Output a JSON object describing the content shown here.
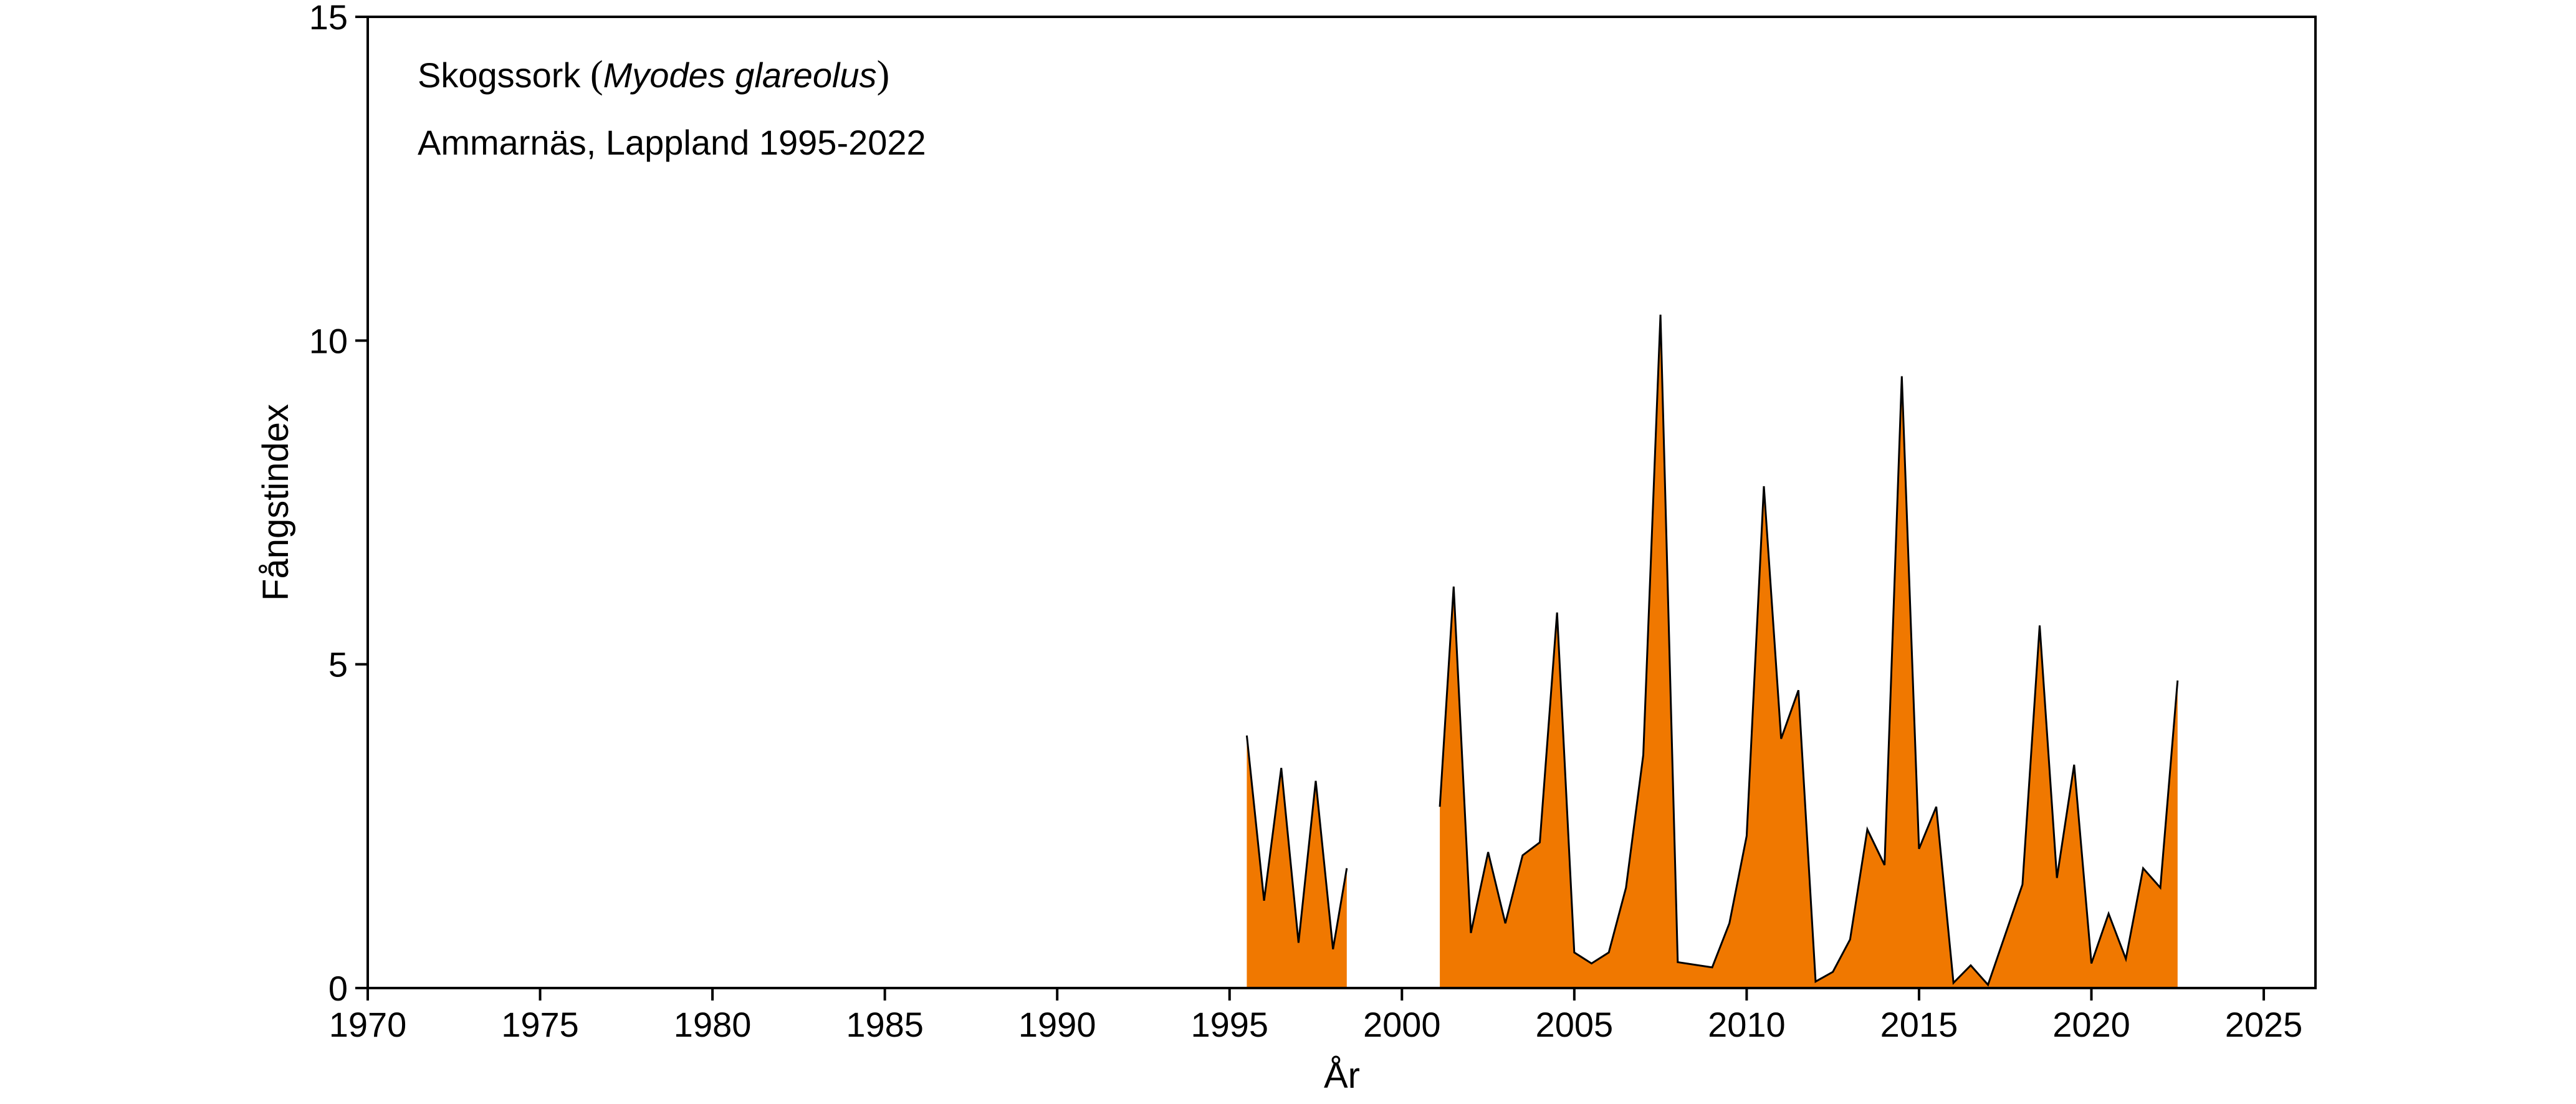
{
  "chart_data": {
    "type": "area",
    "title": "",
    "annotations": {
      "line1_prefix": "Skogssork ",
      "line1_paren_open": "(",
      "line1_species": "Myodes glareolus",
      "line1_paren_close": ")",
      "line2": "Ammarnäs, Lappland 1995-2022"
    },
    "xlabel": "År",
    "ylabel": "Fångstindex",
    "xlim": [
      1970,
      2026.5
    ],
    "ylim": [
      0,
      15
    ],
    "x_ticks": [
      1970,
      1975,
      1980,
      1985,
      1990,
      1995,
      2000,
      2005,
      2010,
      2015,
      2020,
      2025
    ],
    "x_tick_labels": [
      "1970",
      "1975",
      "1980",
      "1985",
      "1990",
      "1995",
      "2000",
      "2005",
      "2010",
      "2015",
      "2020",
      "2025"
    ],
    "y_ticks": [
      0,
      5,
      10,
      15
    ],
    "y_tick_labels": [
      "0",
      "5",
      "10",
      "15"
    ],
    "grid": false,
    "fill_color": "#F07800",
    "line_color": "#000000",
    "segments": [
      {
        "x": [
          1995.5,
          1996.0,
          1996.5,
          1997.0,
          1997.5,
          1998.0,
          1998.4
        ],
        "y": [
          3.9,
          1.35,
          3.4,
          0.7,
          3.2,
          0.6,
          1.85
        ]
      },
      {
        "x": [
          2001.1,
          2001.5,
          2002.0,
          2002.5,
          2003.0,
          2003.5,
          2004.0,
          2004.5,
          2005.0,
          2005.5,
          2006.0,
          2006.5,
          2007.0,
          2007.5,
          2008.0,
          2009.0,
          2009.5,
          2010.0,
          2010.5,
          2011.0,
          2011.5,
          2012.0,
          2012.5,
          2013.0,
          2013.5,
          2014.0,
          2014.5,
          2015.0,
          2015.5,
          2016.0,
          2016.5,
          2017.0,
          2018.0,
          2018.5,
          2019.0,
          2019.5,
          2020.0,
          2020.5,
          2021.0,
          2021.5,
          2022.0,
          2022.5
        ],
        "y": [
          2.8,
          6.2,
          0.85,
          2.1,
          1.0,
          2.05,
          2.25,
          5.8,
          0.55,
          0.38,
          0.55,
          1.55,
          3.6,
          10.4,
          0.4,
          0.32,
          1.0,
          2.35,
          7.75,
          3.85,
          4.6,
          0.1,
          0.25,
          0.75,
          2.45,
          1.9,
          9.45,
          2.15,
          2.8,
          0.08,
          0.35,
          0.05,
          1.6,
          5.6,
          1.7,
          3.45,
          0.38,
          1.15,
          0.45,
          1.85,
          1.55,
          4.75
        ]
      }
    ]
  }
}
